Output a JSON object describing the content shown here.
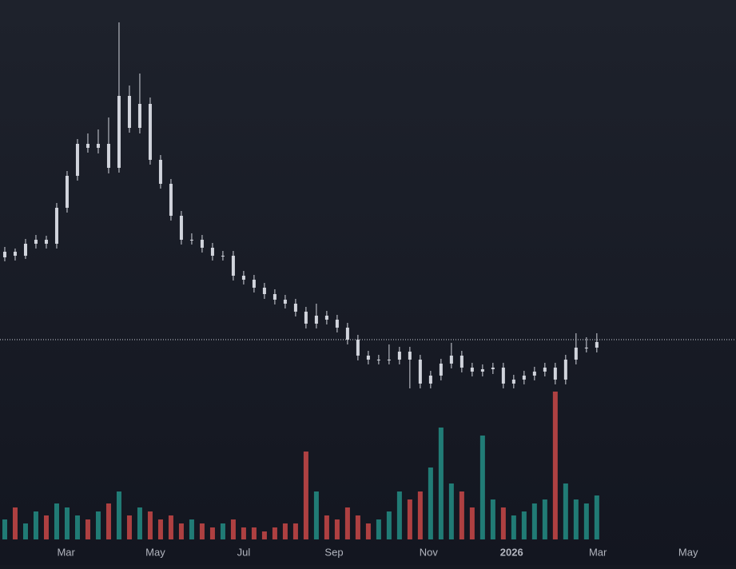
{
  "chart_data": {
    "type": "candlestick",
    "x": [
      0,
      1,
      2,
      3,
      4,
      5,
      6,
      7,
      8,
      9,
      10,
      11,
      12,
      13,
      14,
      15,
      16,
      17,
      18,
      19,
      20,
      21,
      22,
      23,
      24,
      25,
      26,
      27,
      28,
      29,
      30,
      31,
      32,
      33,
      34,
      35,
      36,
      37,
      38,
      39,
      40,
      41,
      42,
      43,
      44,
      45,
      46,
      47,
      48,
      49,
      50,
      51,
      52,
      53,
      54,
      55,
      56,
      57
    ],
    "candles": [
      [
        385,
        398,
        380,
        392
      ],
      [
        392,
        396,
        381,
        387
      ],
      [
        387,
        408,
        383,
        402
      ],
      [
        402,
        413,
        396,
        407
      ],
      [
        407,
        412,
        396,
        402
      ],
      [
        402,
        453,
        396,
        447
      ],
      [
        447,
        493,
        441,
        487
      ],
      [
        487,
        533,
        481,
        527
      ],
      [
        527,
        540,
        516,
        522
      ],
      [
        522,
        545,
        515,
        527
      ],
      [
        527,
        560,
        490,
        497
      ],
      [
        497,
        679,
        491,
        587
      ],
      [
        587,
        600,
        541,
        547
      ],
      [
        547,
        615,
        540,
        577
      ],
      [
        577,
        585,
        501,
        507
      ],
      [
        507,
        513,
        471,
        477
      ],
      [
        477,
        483,
        431,
        437
      ],
      [
        437,
        443,
        401,
        407
      ],
      [
        407,
        415,
        401,
        407
      ],
      [
        407,
        413,
        391,
        397
      ],
      [
        397,
        403,
        381,
        387
      ],
      [
        387,
        393,
        381,
        387
      ],
      [
        387,
        393,
        356,
        362
      ],
      [
        362,
        368,
        351,
        357
      ],
      [
        357,
        363,
        341,
        347
      ],
      [
        347,
        353,
        333,
        339
      ],
      [
        339,
        345,
        326,
        332
      ],
      [
        332,
        338,
        321,
        327
      ],
      [
        327,
        333,
        311,
        317
      ],
      [
        317,
        323,
        296,
        302
      ],
      [
        302,
        327,
        296,
        312
      ],
      [
        312,
        318,
        301,
        307
      ],
      [
        307,
        313,
        291,
        297
      ],
      [
        297,
        303,
        276,
        282
      ],
      [
        282,
        288,
        256,
        262
      ],
      [
        262,
        268,
        251,
        257
      ],
      [
        257,
        263,
        251,
        257
      ],
      [
        257,
        276,
        251,
        257
      ],
      [
        257,
        273,
        251,
        267
      ],
      [
        267,
        273,
        221,
        257
      ],
      [
        257,
        263,
        221,
        227
      ],
      [
        227,
        243,
        221,
        237
      ],
      [
        237,
        258,
        231,
        252
      ],
      [
        252,
        278,
        246,
        262
      ],
      [
        262,
        268,
        241,
        247
      ],
      [
        247,
        253,
        236,
        242
      ],
      [
        242,
        251,
        236,
        245
      ],
      [
        245,
        253,
        239,
        247
      ],
      [
        247,
        253,
        221,
        227
      ],
      [
        227,
        238,
        221,
        232
      ],
      [
        232,
        243,
        226,
        237
      ],
      [
        237,
        248,
        231,
        242
      ],
      [
        242,
        253,
        236,
        247
      ],
      [
        247,
        253,
        226,
        232
      ],
      [
        232,
        263,
        226,
        257
      ],
      [
        257,
        290,
        251,
        272
      ],
      [
        272,
        285,
        266,
        272
      ],
      [
        272,
        290,
        266,
        279
      ]
    ],
    "volume": [
      25,
      40,
      20,
      35,
      30,
      45,
      40,
      30,
      25,
      35,
      45,
      60,
      30,
      40,
      35,
      25,
      30,
      20,
      25,
      20,
      15,
      20,
      25,
      15,
      15,
      10,
      15,
      20,
      20,
      110,
      60,
      30,
      25,
      40,
      30,
      20,
      25,
      35,
      60,
      50,
      60,
      90,
      140,
      70,
      60,
      40,
      130,
      50,
      40,
      30,
      35,
      45,
      50,
      185,
      70,
      50,
      45,
      55
    ],
    "price_line": 282,
    "xlim": [
      -0.46,
      70.4
    ],
    "xticks": [
      {
        "value": 5.9,
        "label": "Mar"
      },
      {
        "value": 14.5,
        "label": "May"
      },
      {
        "value": 23,
        "label": "Jul"
      },
      {
        "value": 31.7,
        "label": "Sep"
      },
      {
        "value": 40.8,
        "label": "Nov"
      },
      {
        "value": 48.8,
        "label": "2026"
      },
      {
        "value": 57.1,
        "label": "Mar"
      },
      {
        "value": 65.8,
        "label": "May"
      }
    ],
    "ylim": [
      0,
      707
    ],
    "y2lim": [
      0,
      675
    ],
    "candle_color": "#d1d4dc",
    "up_color": "#26a69a",
    "down_color": "#ef5350"
  }
}
